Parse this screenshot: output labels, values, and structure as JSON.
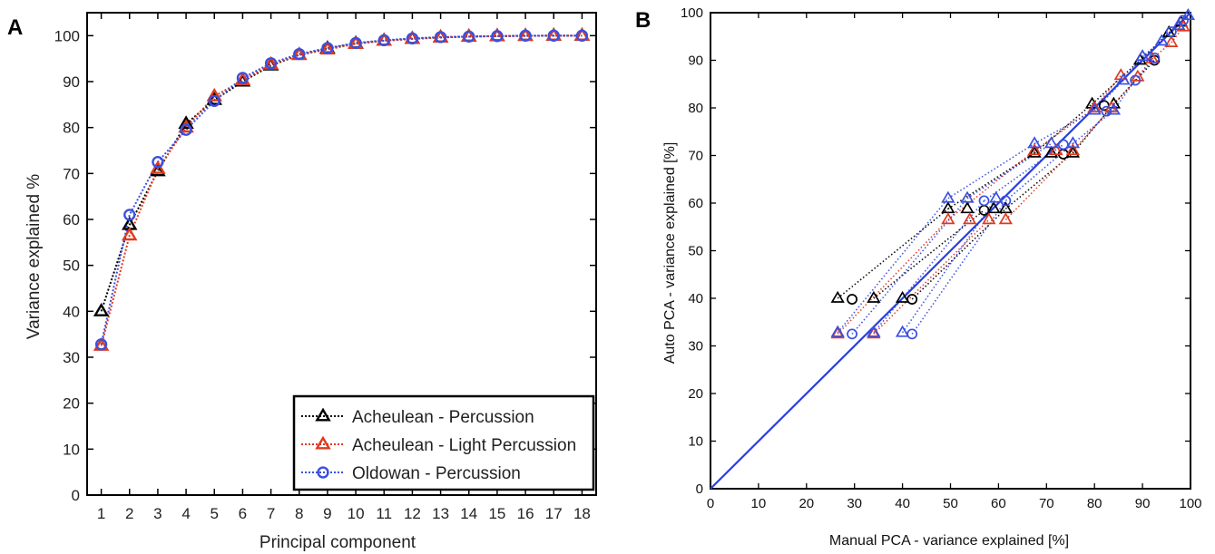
{
  "panels": {
    "a_label": "A",
    "b_label": "B"
  },
  "chart_data": [
    {
      "type": "line",
      "panel": "A",
      "xlabel": "Principal component",
      "ylabel": "Variance explained %",
      "x": [
        1,
        2,
        3,
        4,
        5,
        6,
        7,
        8,
        9,
        10,
        11,
        12,
        13,
        14,
        15,
        16,
        17,
        18
      ],
      "xlim": [
        0.5,
        18.5
      ],
      "ylim": [
        0,
        105
      ],
      "yticks": [
        0,
        10,
        20,
        30,
        40,
        50,
        60,
        70,
        80,
        90,
        100
      ],
      "series": [
        {
          "name": "Acheulean - Percussion",
          "color": "#000000",
          "marker": "triangle",
          "values": [
            40.0,
            58.8,
            70.5,
            80.8,
            86.0,
            90.0,
            93.5,
            95.8,
            97.2,
            98.3,
            98.9,
            99.3,
            99.6,
            99.8,
            99.9,
            99.95,
            100.0,
            100.0
          ]
        },
        {
          "name": "Acheulean - Light Percussion",
          "color": "#e03a1e",
          "marker": "triangle",
          "values": [
            32.5,
            56.5,
            71.0,
            80.0,
            86.8,
            90.3,
            93.7,
            95.8,
            97.0,
            98.2,
            98.9,
            99.3,
            99.6,
            99.8,
            99.9,
            99.95,
            100.0,
            100.0
          ]
        },
        {
          "name": "Oldowan - Percussion",
          "color": "#3b4fe0",
          "marker": "circle",
          "values": [
            32.8,
            61.0,
            72.5,
            79.5,
            85.8,
            90.8,
            94.0,
            96.0,
            97.3,
            98.4,
            99.0,
            99.4,
            99.7,
            99.8,
            99.9,
            100.0,
            100.0,
            100.0
          ]
        }
      ]
    },
    {
      "type": "scatter",
      "panel": "B",
      "xlabel": "Manual PCA - variance explained [%]",
      "ylabel": "Auto PCA - variance explained [%]",
      "xlim": [
        0,
        100
      ],
      "ylim": [
        0,
        100
      ],
      "xticks": [
        0,
        10,
        20,
        30,
        40,
        50,
        60,
        70,
        80,
        90,
        100
      ],
      "yticks": [
        0,
        10,
        20,
        30,
        40,
        50,
        60,
        70,
        80,
        90,
        100
      ],
      "identity_line": {
        "color": "#2a3fe0",
        "from": [
          0,
          0
        ],
        "to": [
          100,
          100
        ]
      },
      "series": [
        {
          "color": "#000000",
          "points": [
            {
              "x": 26.5,
              "y": 40.0,
              "marker": "triangle"
            },
            {
              "x": 29.5,
              "y": 39.8,
              "marker": "circle"
            },
            {
              "x": 34.0,
              "y": 40.0,
              "marker": "triangle"
            },
            {
              "x": 40.0,
              "y": 40.0,
              "marker": "triangle"
            },
            {
              "x": 42.0,
              "y": 39.8,
              "marker": "circle"
            },
            {
              "x": 49.5,
              "y": 58.8,
              "marker": "triangle"
            },
            {
              "x": 53.5,
              "y": 58.8,
              "marker": "triangle"
            },
            {
              "x": 57.0,
              "y": 58.5,
              "marker": "circle"
            },
            {
              "x": 59.0,
              "y": 58.8,
              "marker": "triangle"
            },
            {
              "x": 61.5,
              "y": 58.8,
              "marker": "triangle"
            },
            {
              "x": 67.5,
              "y": 70.5,
              "marker": "triangle"
            },
            {
              "x": 71.0,
              "y": 70.5,
              "marker": "triangle"
            },
            {
              "x": 73.5,
              "y": 70.3,
              "marker": "circle"
            },
            {
              "x": 75.5,
              "y": 70.5,
              "marker": "triangle"
            },
            {
              "x": 79.5,
              "y": 80.8,
              "marker": "triangle"
            },
            {
              "x": 82.0,
              "y": 80.5,
              "marker": "circle"
            },
            {
              "x": 84.0,
              "y": 80.8,
              "marker": "triangle"
            },
            {
              "x": 89.5,
              "y": 90.0,
              "marker": "triangle"
            },
            {
              "x": 92.5,
              "y": 90.0,
              "marker": "circle"
            },
            {
              "x": 95.5,
              "y": 95.8,
              "marker": "triangle"
            },
            {
              "x": 98.0,
              "y": 98.0,
              "marker": "triangle"
            }
          ]
        },
        {
          "color": "#e03a1e",
          "points": [
            {
              "x": 26.5,
              "y": 32.5,
              "marker": "triangle"
            },
            {
              "x": 34.0,
              "y": 32.5,
              "marker": "triangle"
            },
            {
              "x": 49.5,
              "y": 56.5,
              "marker": "triangle"
            },
            {
              "x": 54.0,
              "y": 56.5,
              "marker": "triangle"
            },
            {
              "x": 58.0,
              "y": 56.5,
              "marker": "triangle"
            },
            {
              "x": 61.5,
              "y": 56.5,
              "marker": "triangle"
            },
            {
              "x": 67.5,
              "y": 71.0,
              "marker": "triangle"
            },
            {
              "x": 72.0,
              "y": 71.0,
              "marker": "triangle"
            },
            {
              "x": 75.5,
              "y": 71.0,
              "marker": "triangle"
            },
            {
              "x": 80.0,
              "y": 80.0,
              "marker": "triangle"
            },
            {
              "x": 83.5,
              "y": 80.0,
              "marker": "triangle"
            },
            {
              "x": 85.5,
              "y": 86.8,
              "marker": "triangle"
            },
            {
              "x": 89.0,
              "y": 86.5,
              "marker": "triangle"
            },
            {
              "x": 92.0,
              "y": 90.3,
              "marker": "triangle"
            },
            {
              "x": 96.0,
              "y": 93.7,
              "marker": "triangle"
            },
            {
              "x": 98.5,
              "y": 97.0,
              "marker": "triangle"
            }
          ]
        },
        {
          "color": "#3b4fe0",
          "points": [
            {
              "x": 26.5,
              "y": 32.8,
              "marker": "triangle"
            },
            {
              "x": 29.5,
              "y": 32.5,
              "marker": "circle"
            },
            {
              "x": 34.0,
              "y": 32.8,
              "marker": "triangle"
            },
            {
              "x": 40.0,
              "y": 32.8,
              "marker": "triangle"
            },
            {
              "x": 42.0,
              "y": 32.5,
              "marker": "circle"
            },
            {
              "x": 49.5,
              "y": 61.0,
              "marker": "triangle"
            },
            {
              "x": 53.5,
              "y": 61.0,
              "marker": "triangle"
            },
            {
              "x": 57.0,
              "y": 60.5,
              "marker": "circle"
            },
            {
              "x": 59.5,
              "y": 61.0,
              "marker": "triangle"
            },
            {
              "x": 61.5,
              "y": 60.5,
              "marker": "circle"
            },
            {
              "x": 67.5,
              "y": 72.5,
              "marker": "triangle"
            },
            {
              "x": 71.0,
              "y": 72.5,
              "marker": "triangle"
            },
            {
              "x": 73.5,
              "y": 72.3,
              "marker": "circle"
            },
            {
              "x": 75.5,
              "y": 72.5,
              "marker": "triangle"
            },
            {
              "x": 80.0,
              "y": 79.5,
              "marker": "triangle"
            },
            {
              "x": 82.5,
              "y": 79.3,
              "marker": "circle"
            },
            {
              "x": 84.0,
              "y": 79.5,
              "marker": "triangle"
            },
            {
              "x": 86.0,
              "y": 85.8,
              "marker": "triangle"
            },
            {
              "x": 88.5,
              "y": 85.8,
              "marker": "circle"
            },
            {
              "x": 90.0,
              "y": 90.8,
              "marker": "triangle"
            },
            {
              "x": 92.5,
              "y": 90.5,
              "marker": "circle"
            },
            {
              "x": 94.0,
              "y": 94.0,
              "marker": "triangle"
            },
            {
              "x": 96.0,
              "y": 96.0,
              "marker": "circle"
            },
            {
              "x": 97.5,
              "y": 97.3,
              "marker": "triangle"
            },
            {
              "x": 98.5,
              "y": 98.4,
              "marker": "circle"
            },
            {
              "x": 99.5,
              "y": 99.4,
              "marker": "triangle"
            }
          ]
        }
      ],
      "links": [
        {
          "color": "#000000",
          "from": [
            26.5,
            40.0
          ],
          "to": [
            49.5,
            58.8
          ]
        },
        {
          "color": "#000000",
          "from": [
            34.0,
            40.0
          ],
          "to": [
            57.0,
            58.5
          ]
        },
        {
          "color": "#000000",
          "from": [
            42.0,
            39.8
          ],
          "to": [
            61.5,
            58.8
          ]
        },
        {
          "color": "#000000",
          "from": [
            49.5,
            58.8
          ],
          "to": [
            67.5,
            70.5
          ]
        },
        {
          "color": "#000000",
          "from": [
            61.5,
            58.8
          ],
          "to": [
            75.5,
            70.5
          ]
        },
        {
          "color": "#000000",
          "from": [
            67.5,
            70.5
          ],
          "to": [
            79.5,
            80.8
          ]
        },
        {
          "color": "#000000",
          "from": [
            75.5,
            70.5
          ],
          "to": [
            84.0,
            80.8
          ]
        },
        {
          "color": "#000000",
          "from": [
            79.5,
            80.8
          ],
          "to": [
            89.5,
            90.0
          ]
        },
        {
          "color": "#000000",
          "from": [
            84.0,
            80.8
          ],
          "to": [
            92.5,
            90.0
          ]
        },
        {
          "color": "#000000",
          "from": [
            89.5,
            90.0
          ],
          "to": [
            95.5,
            95.8
          ]
        },
        {
          "color": "#000000",
          "from": [
            95.5,
            95.8
          ],
          "to": [
            98.0,
            98.0
          ]
        },
        {
          "color": "#e03a1e",
          "from": [
            26.5,
            32.5
          ],
          "to": [
            49.5,
            56.5
          ]
        },
        {
          "color": "#e03a1e",
          "from": [
            34.0,
            32.5
          ],
          "to": [
            58.0,
            56.5
          ]
        },
        {
          "color": "#e03a1e",
          "from": [
            49.5,
            56.5
          ],
          "to": [
            67.5,
            71.0
          ]
        },
        {
          "color": "#e03a1e",
          "from": [
            61.5,
            56.5
          ],
          "to": [
            75.5,
            71.0
          ]
        },
        {
          "color": "#e03a1e",
          "from": [
            67.5,
            71.0
          ],
          "to": [
            80.0,
            80.0
          ]
        },
        {
          "color": "#e03a1e",
          "from": [
            75.5,
            71.0
          ],
          "to": [
            83.5,
            80.0
          ]
        },
        {
          "color": "#e03a1e",
          "from": [
            80.0,
            80.0
          ],
          "to": [
            85.5,
            86.8
          ]
        },
        {
          "color": "#e03a1e",
          "from": [
            83.5,
            80.0
          ],
          "to": [
            89.0,
            86.5
          ]
        },
        {
          "color": "#e03a1e",
          "from": [
            89.0,
            86.5
          ],
          "to": [
            92.0,
            90.3
          ]
        },
        {
          "color": "#e03a1e",
          "from": [
            92.0,
            90.3
          ],
          "to": [
            96.0,
            93.7
          ]
        },
        {
          "color": "#e03a1e",
          "from": [
            96.0,
            93.7
          ],
          "to": [
            98.5,
            97.0
          ]
        },
        {
          "color": "#3b4fe0",
          "from": [
            26.5,
            32.8
          ],
          "to": [
            49.5,
            61.0
          ]
        },
        {
          "color": "#3b4fe0",
          "from": [
            29.5,
            32.5
          ],
          "to": [
            53.5,
            61.0
          ]
        },
        {
          "color": "#3b4fe0",
          "from": [
            34.0,
            32.8
          ],
          "to": [
            57.0,
            60.5
          ]
        },
        {
          "color": "#3b4fe0",
          "from": [
            40.0,
            32.8
          ],
          "to": [
            59.5,
            61.0
          ]
        },
        {
          "color": "#3b4fe0",
          "from": [
            42.0,
            32.5
          ],
          "to": [
            61.5,
            60.5
          ]
        },
        {
          "color": "#3b4fe0",
          "from": [
            49.5,
            61.0
          ],
          "to": [
            67.5,
            72.5
          ]
        },
        {
          "color": "#3b4fe0",
          "from": [
            53.5,
            61.0
          ],
          "to": [
            71.0,
            72.5
          ]
        },
        {
          "color": "#3b4fe0",
          "from": [
            57.0,
            60.5
          ],
          "to": [
            73.5,
            72.3
          ]
        },
        {
          "color": "#3b4fe0",
          "from": [
            61.5,
            60.5
          ],
          "to": [
            75.5,
            72.5
          ]
        },
        {
          "color": "#3b4fe0",
          "from": [
            67.5,
            72.5
          ],
          "to": [
            80.0,
            79.5
          ]
        },
        {
          "color": "#3b4fe0",
          "from": [
            75.5,
            72.5
          ],
          "to": [
            84.0,
            79.5
          ]
        },
        {
          "color": "#3b4fe0",
          "from": [
            80.0,
            79.5
          ],
          "to": [
            86.0,
            85.8
          ]
        },
        {
          "color": "#3b4fe0",
          "from": [
            84.0,
            79.5
          ],
          "to": [
            88.5,
            85.8
          ]
        },
        {
          "color": "#3b4fe0",
          "from": [
            86.0,
            85.8
          ],
          "to": [
            90.0,
            90.8
          ]
        },
        {
          "color": "#3b4fe0",
          "from": [
            88.5,
            85.8
          ],
          "to": [
            92.5,
            90.5
          ]
        },
        {
          "color": "#3b4fe0",
          "from": [
            90.0,
            90.8
          ],
          "to": [
            94.0,
            94.0
          ]
        },
        {
          "color": "#3b4fe0",
          "from": [
            94.0,
            94.0
          ],
          "to": [
            96.0,
            96.0
          ]
        },
        {
          "color": "#3b4fe0",
          "from": [
            96.0,
            96.0
          ],
          "to": [
            97.5,
            97.3
          ]
        },
        {
          "color": "#3b4fe0",
          "from": [
            97.5,
            97.3
          ],
          "to": [
            98.5,
            98.4
          ]
        },
        {
          "color": "#3b4fe0",
          "from": [
            98.5,
            98.4
          ],
          "to": [
            99.5,
            99.4
          ]
        }
      ]
    }
  ]
}
